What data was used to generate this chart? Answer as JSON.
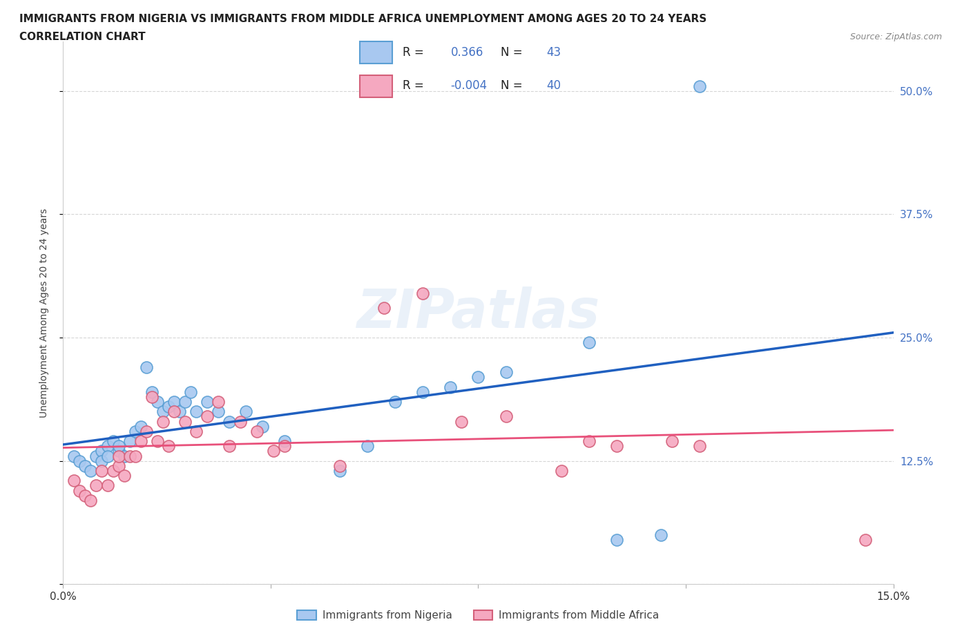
{
  "title_line1": "IMMIGRANTS FROM NIGERIA VS IMMIGRANTS FROM MIDDLE AFRICA UNEMPLOYMENT AMONG AGES 20 TO 24 YEARS",
  "title_line2": "CORRELATION CHART",
  "source": "Source: ZipAtlas.com",
  "ylabel": "Unemployment Among Ages 20 to 24 years",
  "watermark": "ZIPatlas",
  "xlim": [
    0.0,
    0.15
  ],
  "ylim": [
    0.0,
    0.55
  ],
  "yticks": [
    0.0,
    0.125,
    0.25,
    0.375,
    0.5
  ],
  "ytick_labels": [
    "",
    "12.5%",
    "25.0%",
    "37.5%",
    "50.0%"
  ],
  "xticks": [
    0.0,
    0.0375,
    0.075,
    0.1125,
    0.15
  ],
  "xtick_labels": [
    "0.0%",
    "",
    "",
    "",
    "15.0%"
  ],
  "nigeria_color": "#a8c8f0",
  "nigeria_edge": "#5a9fd4",
  "middle_africa_color": "#f5a8c0",
  "middle_africa_edge": "#d4607a",
  "line_nigeria_color": "#2060c0",
  "line_middle_africa_color": "#e8507a",
  "grid_color": "#cccccc",
  "R_nigeria": 0.366,
  "N_nigeria": 43,
  "R_middle_africa": -0.004,
  "N_middle_africa": 40,
  "nigeria_x": [
    0.002,
    0.003,
    0.004,
    0.005,
    0.006,
    0.007,
    0.007,
    0.008,
    0.008,
    0.009,
    0.01,
    0.01,
    0.011,
    0.012,
    0.013,
    0.014,
    0.015,
    0.016,
    0.017,
    0.018,
    0.019,
    0.02,
    0.021,
    0.022,
    0.023,
    0.024,
    0.026,
    0.028,
    0.03,
    0.033,
    0.036,
    0.04,
    0.05,
    0.055,
    0.06,
    0.065,
    0.07,
    0.075,
    0.08,
    0.095,
    0.1,
    0.108,
    0.115
  ],
  "nigeria_y": [
    0.13,
    0.125,
    0.12,
    0.115,
    0.13,
    0.135,
    0.125,
    0.14,
    0.13,
    0.145,
    0.135,
    0.14,
    0.13,
    0.145,
    0.155,
    0.16,
    0.22,
    0.195,
    0.185,
    0.175,
    0.18,
    0.185,
    0.175,
    0.185,
    0.195,
    0.175,
    0.185,
    0.175,
    0.165,
    0.175,
    0.16,
    0.145,
    0.115,
    0.14,
    0.185,
    0.195,
    0.2,
    0.21,
    0.215,
    0.245,
    0.045,
    0.05,
    0.505
  ],
  "middle_africa_x": [
    0.002,
    0.003,
    0.004,
    0.005,
    0.006,
    0.007,
    0.008,
    0.009,
    0.01,
    0.01,
    0.011,
    0.012,
    0.013,
    0.014,
    0.015,
    0.016,
    0.017,
    0.018,
    0.019,
    0.02,
    0.022,
    0.024,
    0.026,
    0.028,
    0.03,
    0.032,
    0.035,
    0.038,
    0.04,
    0.05,
    0.058,
    0.065,
    0.072,
    0.08,
    0.09,
    0.095,
    0.1,
    0.11,
    0.115,
    0.145
  ],
  "middle_africa_y": [
    0.105,
    0.095,
    0.09,
    0.085,
    0.1,
    0.115,
    0.1,
    0.115,
    0.12,
    0.13,
    0.11,
    0.13,
    0.13,
    0.145,
    0.155,
    0.19,
    0.145,
    0.165,
    0.14,
    0.175,
    0.165,
    0.155,
    0.17,
    0.185,
    0.14,
    0.165,
    0.155,
    0.135,
    0.14,
    0.12,
    0.28,
    0.295,
    0.165,
    0.17,
    0.115,
    0.145,
    0.14,
    0.145,
    0.14,
    0.045
  ],
  "title_fontsize": 11,
  "axis_label_fontsize": 10,
  "tick_fontsize": 11,
  "background_color": "#ffffff",
  "plot_bg_color": "#ffffff"
}
